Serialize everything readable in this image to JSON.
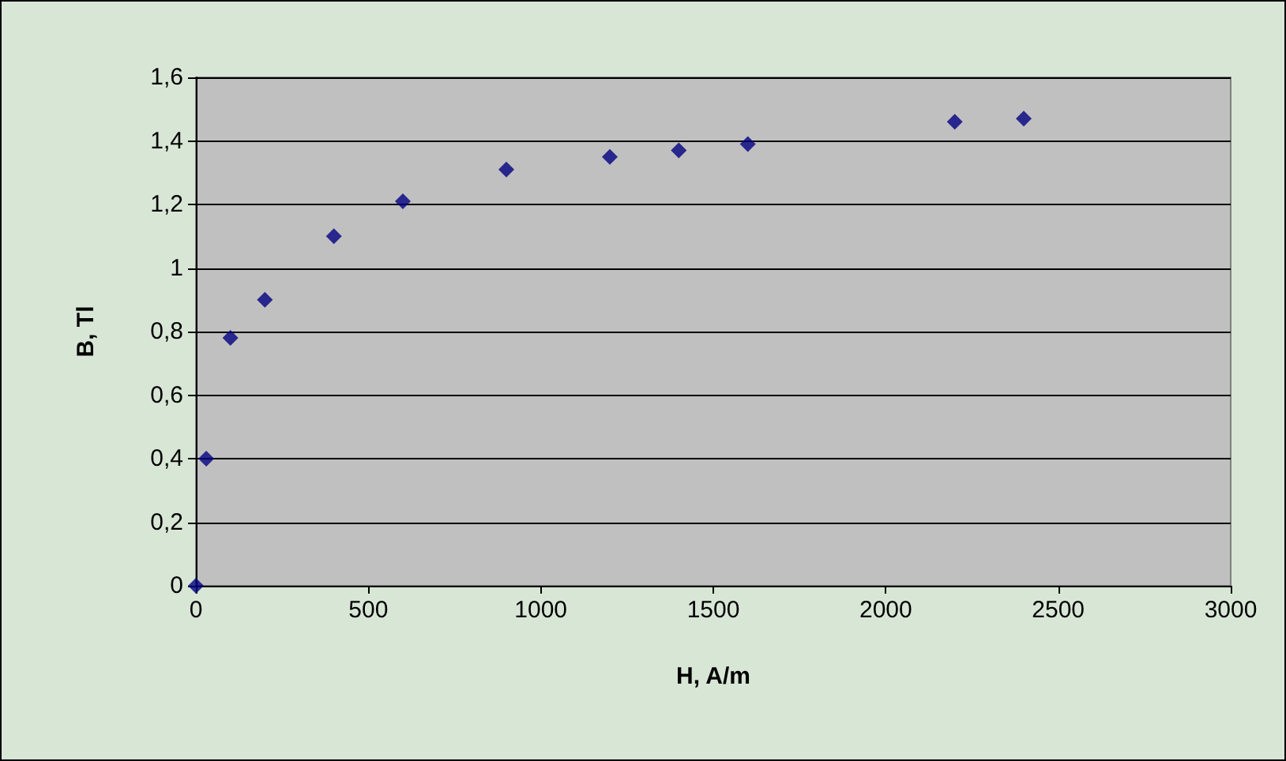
{
  "chart_data": {
    "type": "scatter",
    "xlabel": "H, A/m",
    "ylabel": "B, Tl",
    "x": [
      0,
      30,
      100,
      200,
      400,
      600,
      900,
      1200,
      1400,
      1600,
      2200,
      2400
    ],
    "series": [
      {
        "color": "#000080",
        "values": [
          0,
          0.4,
          0.78,
          0.9,
          1.1,
          1.21,
          1.31,
          1.35,
          1.37,
          1.39,
          1.46,
          1.47
        ]
      }
    ],
    "xlim": [
      0,
      3000
    ],
    "xticks": [
      0,
      500,
      1000,
      1500,
      2000,
      2500,
      3000
    ],
    "ylim": [
      0,
      1.6
    ],
    "yticks": [
      0,
      {
        "value": 0.2,
        "label": "0,2"
      },
      {
        "value": 0.4,
        "label": "0,4"
      },
      {
        "value": 0.6,
        "label": "0,6"
      },
      {
        "value": 0.8,
        "label": "0,8"
      },
      1,
      {
        "value": 1.2,
        "label": "1,2"
      },
      {
        "value": 1.4,
        "label": "1,4"
      },
      {
        "value": 1.6,
        "label": "1,6"
      }
    ],
    "grid": "y",
    "marker": "diamond"
  }
}
